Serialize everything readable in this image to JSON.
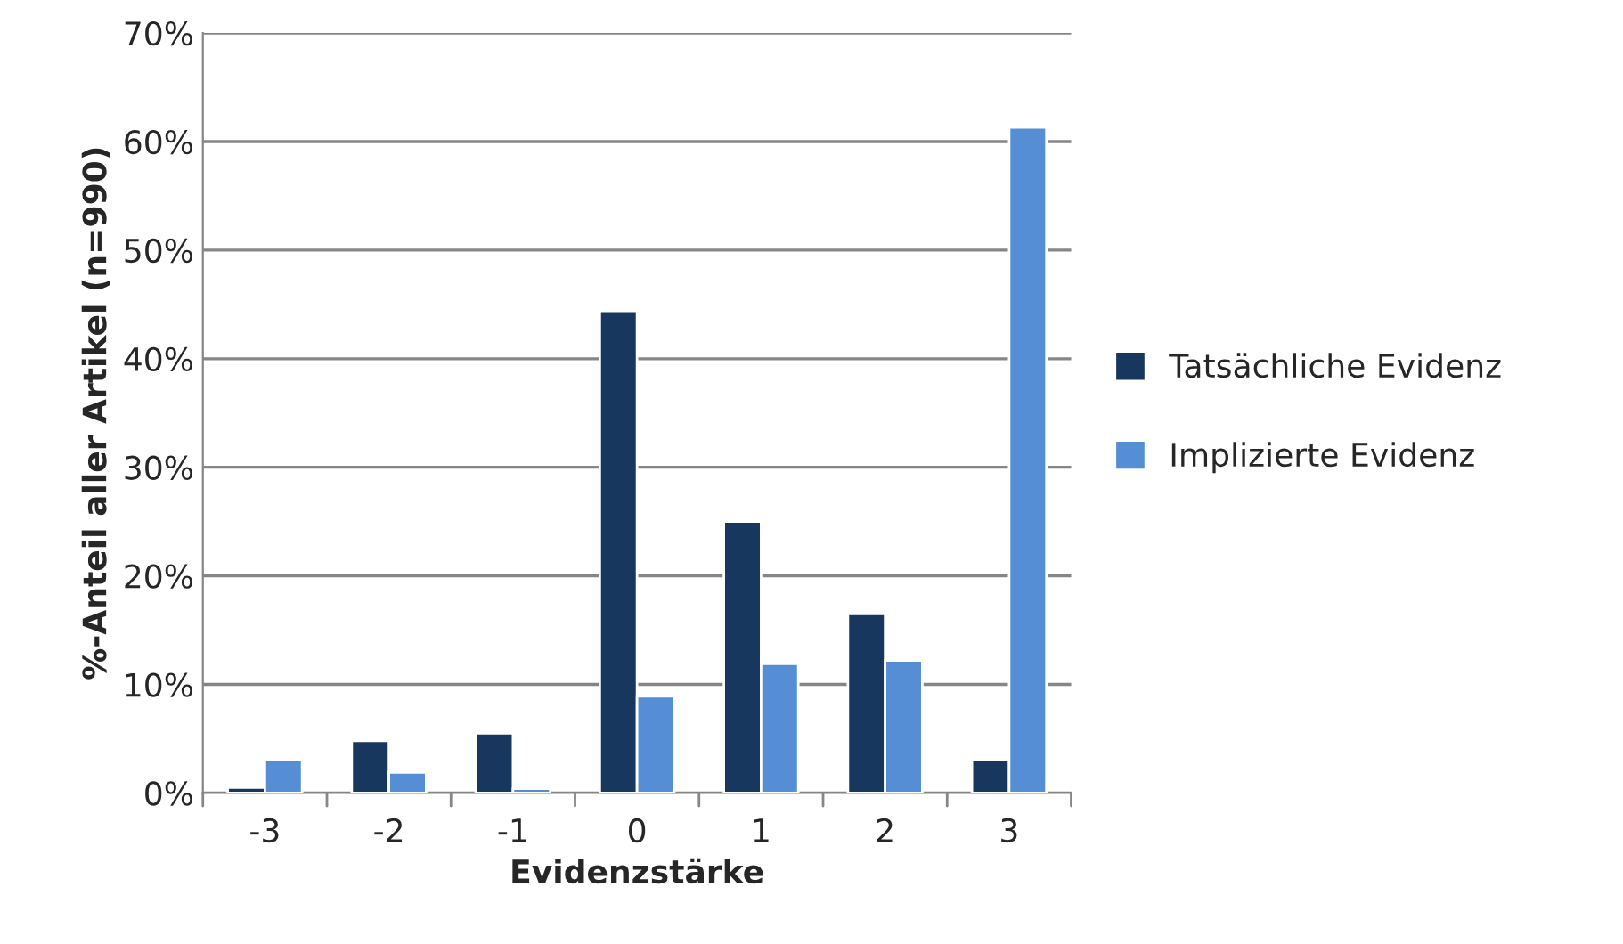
{
  "chart_data": {
    "type": "bar",
    "xlabel": "Evidenzstärke",
    "ylabel": "%-Anteil aller Artikel (n=990)",
    "categories": [
      "-3",
      "-2",
      "-1",
      "0",
      "1",
      "2",
      "3"
    ],
    "series": [
      {
        "name": "Tatsächliche Evidenz",
        "color": "#17375e",
        "values": [
          0.5,
          4.8,
          5.5,
          44.4,
          25.0,
          16.5,
          3.1
        ]
      },
      {
        "name": "Implizierte Evidenz",
        "color": "#558ed5",
        "values": [
          3.1,
          1.9,
          0.4,
          8.9,
          11.9,
          12.2,
          61.3
        ]
      }
    ],
    "ylim": [
      0,
      70
    ],
    "yticks": [
      {
        "value": 0,
        "label": "0%"
      },
      {
        "value": 10,
        "label": "10%"
      },
      {
        "value": 20,
        "label": "20%"
      },
      {
        "value": 30,
        "label": "30%"
      },
      {
        "value": 40,
        "label": "40%"
      },
      {
        "value": 50,
        "label": "50%"
      },
      {
        "value": 60,
        "label": "60%"
      },
      {
        "value": 70,
        "label": "70%"
      }
    ],
    "grid": "y",
    "legend": "right"
  }
}
